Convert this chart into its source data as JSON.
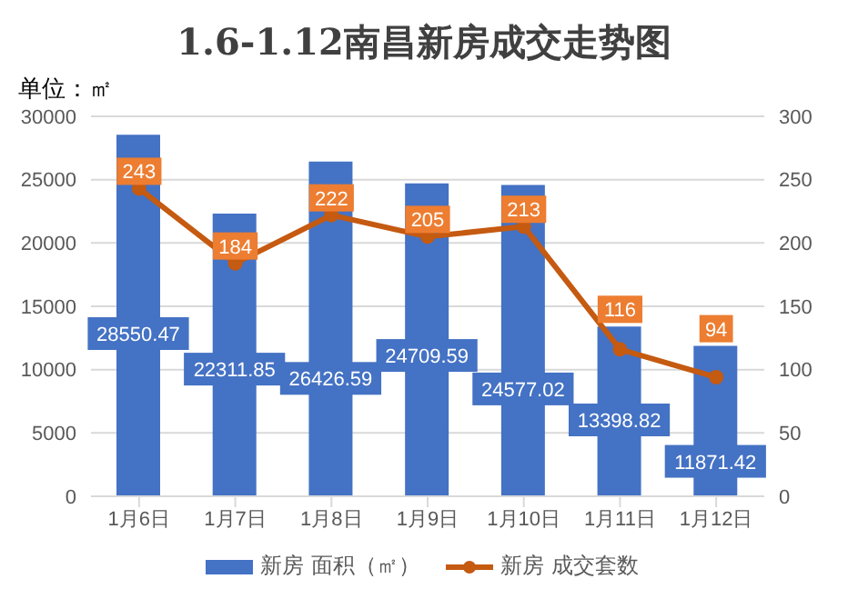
{
  "chart_data": {
    "type": "bar",
    "title": "1.6-1.12南昌新房成交走势图",
    "annotations": [
      "单位：㎡"
    ],
    "categories": [
      "1月6日",
      "1月7日",
      "1月8日",
      "1月9日",
      "1月10日",
      "1月11日",
      "1月12日"
    ],
    "series": [
      {
        "name": "新房 面积（㎡）",
        "type": "bar",
        "color": "#4472c4",
        "values": [
          28550.47,
          22311.85,
          26426.59,
          24709.59,
          24577.02,
          13398.82,
          11871.42
        ]
      },
      {
        "name": "新房 成交套数",
        "type": "line",
        "axis": "y2",
        "color": "#c55a11",
        "values": [
          243,
          184,
          222,
          205,
          213,
          116,
          94
        ]
      }
    ],
    "ylim": [
      0,
      30000
    ],
    "yticks": [
      0,
      5000,
      10000,
      15000,
      20000,
      25000,
      30000
    ],
    "y2lim": [
      0,
      300
    ],
    "y2ticks": [
      0,
      50,
      100,
      150,
      200,
      250,
      300
    ],
    "grid": "y",
    "legend": "bottom",
    "marker": "circle",
    "line_style": "solid",
    "data_labels": true
  }
}
